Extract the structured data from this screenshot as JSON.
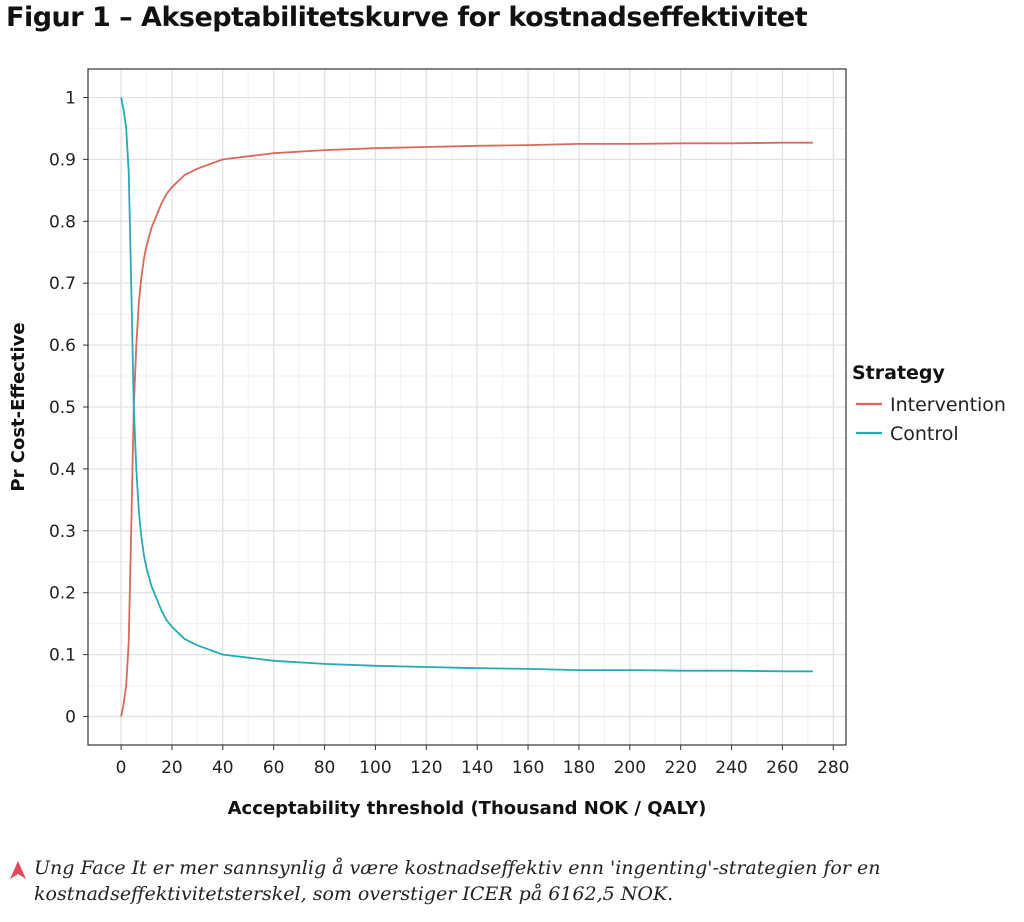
{
  "figure": {
    "title": "Figur 1 – Akseptabilitetskurve for kostnadseffektivitet",
    "caption": "Ung Face It er mer sannsynlig å være kostnadseffektiv enn 'ingenting'-strategien for en kostnadseffektivitetsterskel, som overstiger ICER på 6162,5 NOK.",
    "caption_icon": "triangle-up-icon",
    "caption_icon_color": "#e04b5a"
  },
  "chart_data": {
    "type": "line",
    "xlabel": "Acceptability threshold (Thousand NOK / QALY)",
    "ylabel": "Pr Cost-Effective",
    "xlim": [
      -13,
      285
    ],
    "ylim": [
      -0.046,
      1.046
    ],
    "xticks": [
      0,
      20,
      40,
      60,
      80,
      100,
      120,
      140,
      160,
      180,
      200,
      220,
      240,
      260,
      280
    ],
    "yticks": [
      0,
      0.1,
      0.2,
      0.3,
      0.4,
      0.5,
      0.6,
      0.7,
      0.8,
      0.9,
      1
    ],
    "ytick_labels": [
      "0",
      "0.1",
      "0.2",
      "0.3",
      "0.4",
      "0.5",
      "0.6",
      "0.7",
      "0.8",
      "0.9",
      "1"
    ],
    "grid": true,
    "legend": {
      "title": "Strategy",
      "position": "right"
    },
    "series": [
      {
        "name": "Intervention",
        "color": "#d9695c",
        "x": [
          0,
          1,
          2,
          3,
          4,
          5,
          6,
          7,
          8,
          9,
          10,
          12,
          14,
          16,
          18,
          20,
          25,
          30,
          40,
          50,
          60,
          80,
          100,
          120,
          140,
          160,
          180,
          200,
          220,
          240,
          260,
          272
        ],
        "y": [
          0,
          0.02,
          0.05,
          0.12,
          0.3,
          0.5,
          0.6,
          0.67,
          0.71,
          0.74,
          0.76,
          0.79,
          0.81,
          0.83,
          0.845,
          0.855,
          0.875,
          0.885,
          0.9,
          0.905,
          0.91,
          0.915,
          0.918,
          0.92,
          0.922,
          0.923,
          0.925,
          0.925,
          0.926,
          0.926,
          0.927,
          0.927
        ]
      },
      {
        "name": "Control",
        "color": "#25abb5",
        "x": [
          0,
          1,
          2,
          3,
          4,
          5,
          6,
          7,
          8,
          9,
          10,
          12,
          14,
          16,
          18,
          20,
          25,
          30,
          40,
          50,
          60,
          80,
          100,
          120,
          140,
          160,
          180,
          200,
          220,
          240,
          260,
          272
        ],
        "y": [
          1,
          0.98,
          0.95,
          0.88,
          0.7,
          0.5,
          0.4,
          0.33,
          0.29,
          0.26,
          0.24,
          0.21,
          0.19,
          0.17,
          0.155,
          0.145,
          0.125,
          0.115,
          0.1,
          0.095,
          0.09,
          0.085,
          0.082,
          0.08,
          0.078,
          0.077,
          0.075,
          0.075,
          0.074,
          0.074,
          0.073,
          0.073
        ]
      }
    ]
  }
}
